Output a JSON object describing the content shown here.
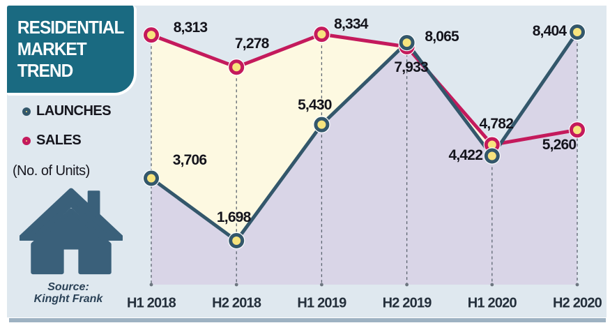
{
  "panel": {
    "title_lines": [
      "RESIDENTIAL",
      "MARKET",
      "TREND"
    ],
    "source": {
      "label": "Source:",
      "name": "Kinght Frank"
    }
  },
  "legend": {
    "items": [
      {
        "label": "LAUNCHES",
        "ring_color": "#33576b"
      },
      {
        "label": "SALES",
        "ring_color": "#c41a5c"
      }
    ],
    "units_note": "(No. of Units)"
  },
  "chart_data": {
    "type": "line",
    "title": "RESIDENTIAL MARKET TREND",
    "ylabel": "No. of Units",
    "categories": [
      "H1 2018",
      "H2 2018",
      "H1 2019",
      "H2 2019",
      "H1 2020",
      "H2 2020"
    ],
    "series": [
      {
        "name": "SALES",
        "color": "#c41a5c",
        "area_fill": "#fdf9e1",
        "values": [
          8313,
          7278,
          8334,
          7933,
          4782,
          5260
        ],
        "labels": [
          "8,313",
          "7,278",
          "8,334",
          "7,933",
          "4,782",
          "5,260"
        ],
        "label_offsets": [
          [
            56,
            -10
          ],
          [
            22,
            -33
          ],
          [
            42,
            -14
          ],
          [
            6,
            30
          ],
          [
            6,
            -30
          ],
          [
            -26,
            22
          ]
        ]
      },
      {
        "name": "LAUNCHES",
        "color": "#33576b",
        "area_fill": "#d9d5e7",
        "values": [
          3706,
          1698,
          5430,
          8065,
          4422,
          8404
        ],
        "labels": [
          "3,706",
          "1,698",
          "5,430",
          "8,065",
          "4,422",
          "8,404"
        ],
        "label_offsets": [
          [
            55,
            -26
          ],
          [
            -4,
            -33
          ],
          [
            -10,
            -28
          ],
          [
            50,
            -8
          ],
          [
            -38,
            -1
          ],
          [
            -40,
            -1
          ]
        ]
      }
    ],
    "marker_fill": "#f7e47e",
    "ylim": [
      1500,
      8500
    ],
    "grid": "dashed vertical guide per category with end dot",
    "legend_position": "left"
  },
  "colors": {
    "canvas_bg": "#dfe8ef",
    "header_bg": "#1a6a81",
    "header_text": "#ffffff",
    "guide_line": "#5c6570",
    "guide_dot": "#6d7680",
    "bottom_band": "#9eb2c2",
    "house_icon": "#3a607a",
    "source_text": "#2b4257",
    "label_text": "#14141c"
  }
}
